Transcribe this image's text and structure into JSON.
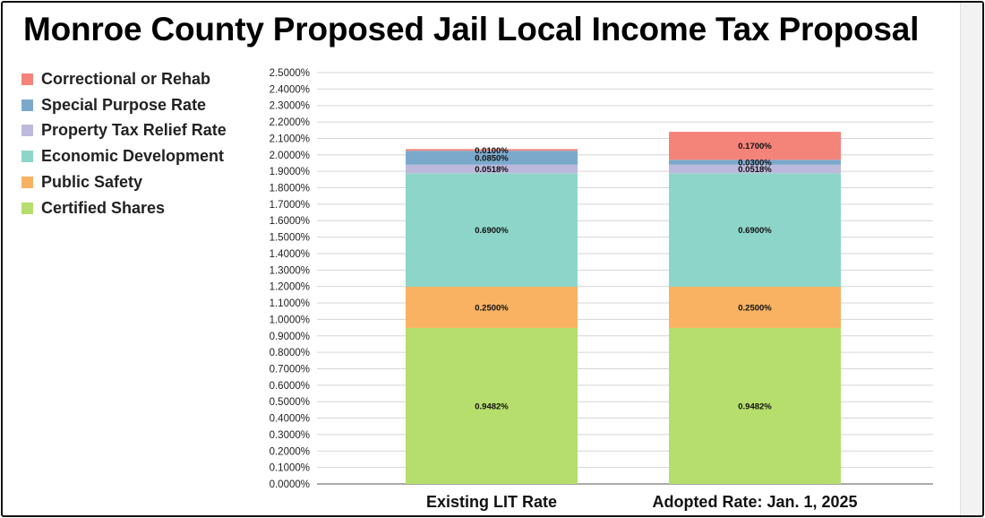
{
  "title": "Monroe County Proposed Jail Local Income Tax Proposal",
  "legend": [
    {
      "label": "Correctional or Rehab",
      "color": "#f4837a"
    },
    {
      "label": "Special Purpose Rate",
      "color": "#7ba9cc"
    },
    {
      "label": "Property Tax Relief Rate",
      "color": "#bdb9dc"
    },
    {
      "label": "Economic Development",
      "color": "#8dd5c8"
    },
    {
      "label": "Public Safety",
      "color": "#f8b262"
    },
    {
      "label": "Certified Shares",
      "color": "#b5de6c"
    }
  ],
  "chart_data": {
    "type": "bar",
    "stacked": true,
    "title": "Monroe County Proposed Jail Local Income Tax Proposal",
    "categories": [
      "Existing LIT Rate",
      "Adopted Rate: Jan. 1, 2025"
    ],
    "ylim": [
      0,
      2.5
    ],
    "ytick_step": 0.1,
    "ytick_format": "percent_4dp",
    "grid": true,
    "legend_position": "left",
    "series": [
      {
        "name": "Certified Shares",
        "color": "#b5de6c",
        "values": [
          0.9482,
          0.9482
        ],
        "labels": [
          "0.9482%",
          "0.9482%"
        ]
      },
      {
        "name": "Public Safety",
        "color": "#f8b262",
        "values": [
          0.25,
          0.25
        ],
        "labels": [
          "0.2500%",
          "0.2500%"
        ]
      },
      {
        "name": "Economic Development",
        "color": "#8dd5c8",
        "values": [
          0.69,
          0.69
        ],
        "labels": [
          "0.6900%",
          "0.6900%"
        ]
      },
      {
        "name": "Property Tax Relief Rate",
        "color": "#bdb9dc",
        "values": [
          0.0518,
          0.0518
        ],
        "labels": [
          "0.0518%",
          "0.0518%"
        ]
      },
      {
        "name": "Special Purpose Rate",
        "color": "#7ba9cc",
        "values": [
          0.085,
          0.03
        ],
        "labels": [
          "0.0850%",
          "0.0300%"
        ]
      },
      {
        "name": "Correctional or Rehab",
        "color": "#f4837a",
        "values": [
          0.01,
          0.17
        ],
        "labels": [
          "0.0100%",
          "0.1700%"
        ]
      }
    ]
  }
}
